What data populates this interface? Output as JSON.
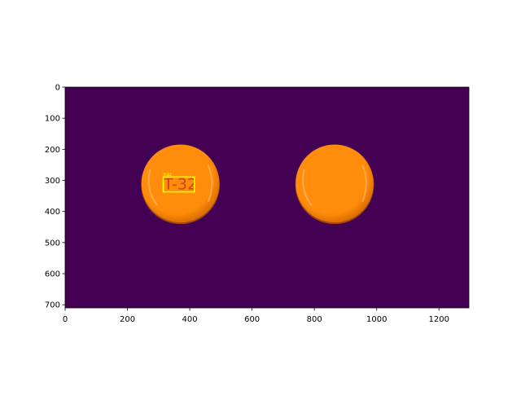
{
  "colors": {
    "background": "#440154",
    "pill_main": "#FF8C0A",
    "pill_shadow": "#D86A00",
    "pill_edge": "#B65A00",
    "pill_highlight": "#FFB25A",
    "box": "#FFFF00",
    "imprint": "#D04418",
    "axis": "#000000"
  },
  "chart_data": {
    "type": "image",
    "title": "",
    "xlabel": "",
    "ylabel": "",
    "xlim": [
      0,
      1296
    ],
    "ylim": [
      710,
      0
    ],
    "x_ticks": [
      0,
      200,
      400,
      600,
      800,
      1000,
      1200
    ],
    "y_ticks": [
      0,
      100,
      200,
      300,
      400,
      500,
      600,
      700
    ],
    "objects": [
      {
        "name": "pill-1",
        "shape": "circle",
        "center": [
          370,
          310
        ],
        "radius": 125,
        "imprint": "T-32",
        "detection": {
          "label": "T-32",
          "x_range": [
            315,
            415
          ],
          "y_range": [
            289,
            337
          ]
        }
      },
      {
        "name": "pill-2",
        "shape": "circle",
        "center": [
          865,
          310
        ],
        "radius": 125
      }
    ]
  }
}
